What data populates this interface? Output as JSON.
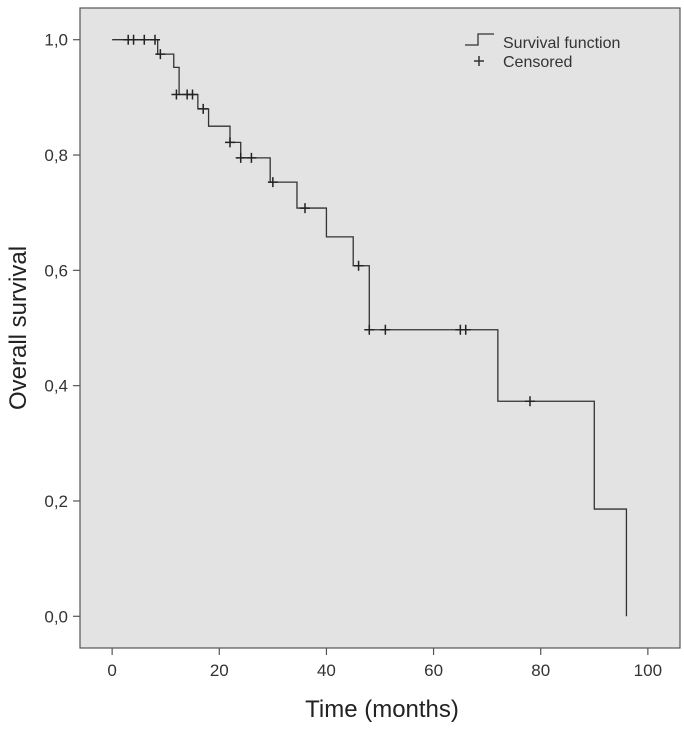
{
  "chart_data": {
    "type": "line",
    "subtype": "kaplan-meier step",
    "title": "",
    "xlabel": "Time (months)",
    "ylabel": "Overall survival",
    "xlim": [
      -6,
      106
    ],
    "ylim": [
      -0.055,
      1.055
    ],
    "x_ticks": [
      0,
      20,
      40,
      60,
      80,
      100
    ],
    "x_tick_labels": [
      "0",
      "20",
      "40",
      "60",
      "80",
      "100"
    ],
    "y_ticks": [
      0.0,
      0.2,
      0.4,
      0.6,
      0.8,
      1.0
    ],
    "y_tick_labels": [
      "0,0",
      "0,2",
      "0,4",
      "0,6",
      "0,8",
      "1,0"
    ],
    "grid": false,
    "legend_position": "top-right",
    "colors": {
      "plot_bg": "#e3e3e3",
      "line": "#333333",
      "frame": "#555555"
    },
    "series": [
      {
        "name": "Survival function",
        "style": "step",
        "x": [
          0,
          8.5,
          11.5,
          12.5,
          16,
          18,
          22,
          24,
          29.5,
          34.5,
          40,
          45,
          48,
          72,
          90,
          96
        ],
        "y": [
          1.0,
          0.975,
          0.952,
          0.905,
          0.88,
          0.85,
          0.822,
          0.795,
          0.753,
          0.708,
          0.658,
          0.608,
          0.497,
          0.373,
          0.186,
          0.0
        ]
      },
      {
        "name": "Censored",
        "style": "marker-plus",
        "x": [
          3,
          4,
          6,
          8,
          9,
          12,
          14,
          15,
          17,
          22,
          24,
          26,
          30,
          36,
          46,
          48,
          51,
          65,
          66,
          78
        ],
        "y": [
          1.0,
          1.0,
          1.0,
          1.0,
          0.975,
          0.905,
          0.905,
          0.905,
          0.88,
          0.822,
          0.795,
          0.795,
          0.753,
          0.708,
          0.608,
          0.497,
          0.497,
          0.497,
          0.497,
          0.373
        ]
      }
    ],
    "legend": [
      {
        "label": "Survival function",
        "symbol": "step-line"
      },
      {
        "label": "Censored",
        "symbol": "plus"
      }
    ]
  }
}
